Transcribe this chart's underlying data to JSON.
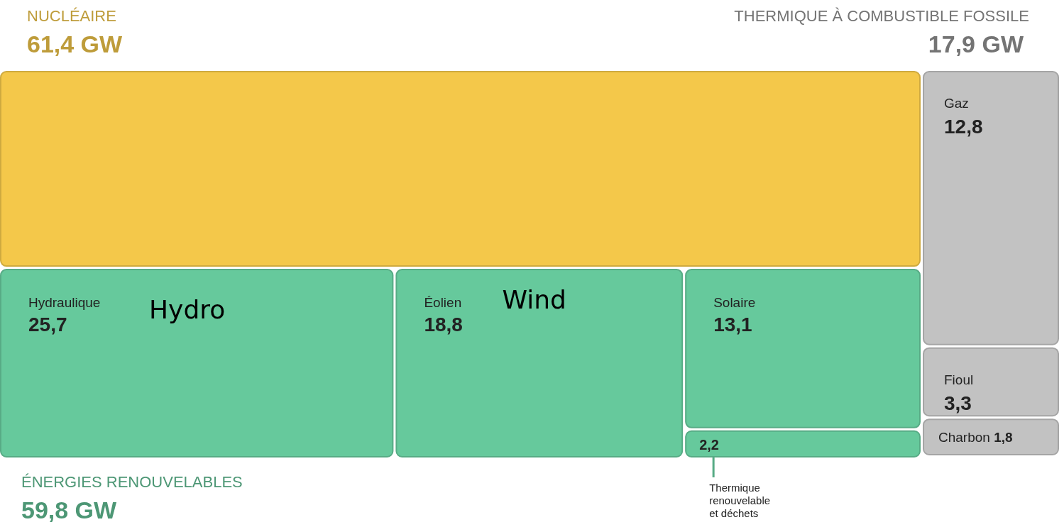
{
  "chart_data": {
    "type": "other",
    "categories": [
      "NUCLÉAIRE",
      "Hydraulique",
      "Éolien",
      "Solaire",
      "Thermique renouvelable et déchets",
      "Gaz",
      "Fioul",
      "Charbon"
    ],
    "values": [
      61.4,
      25.7,
      18.8,
      13.1,
      2.2,
      12.8,
      3.3,
      1.8
    ],
    "value_labels": [
      "61,4 GW",
      "25,7",
      "18,8",
      "13,1",
      "2,2",
      "12,8",
      "3,3",
      "1,8"
    ],
    "colors": [
      "#f4c84a",
      "#66c99c",
      "#66c99c",
      "#66c99c",
      "#66c99c",
      "#c2c2c2",
      "#c2c2c2",
      "#c2c2c2"
    ],
    "annotations": [
      "THERMIQUE À COMBUSTIBLE FOSSILE",
      "17,9 GW",
      "ÉNERGIES RENOUVELABLES",
      "59,8 GW",
      "Hydro",
      "Wind"
    ]
  }
}
